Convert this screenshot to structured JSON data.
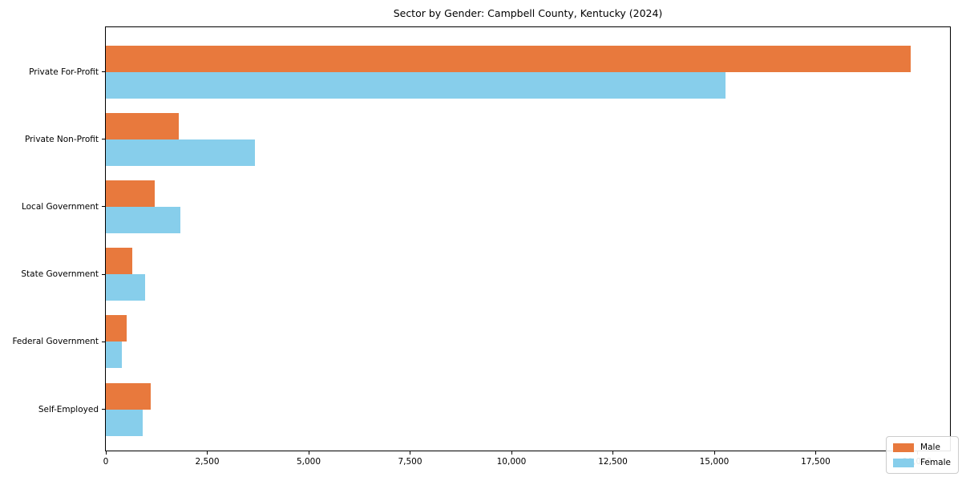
{
  "title": "Sector by Gender: Campbell County, Kentucky (2024)",
  "colors": {
    "male": "#e8793d",
    "female": "#87ceeb",
    "axis": "#000000",
    "legend_border": "#cccccc",
    "background": "#ffffff"
  },
  "chart_data": {
    "type": "bar",
    "orientation": "horizontal",
    "title": "Sector by Gender: Campbell County, Kentucky (2024)",
    "categories": [
      "Private For-Profit",
      "Private Non-Profit",
      "Local Government",
      "State Government",
      "Federal Government",
      "Self-Employed"
    ],
    "series": [
      {
        "name": "Male",
        "color": "#e8793d",
        "values": [
          19840,
          1800,
          1210,
          650,
          510,
          1110
        ]
      },
      {
        "name": "Female",
        "color": "#87ceeb",
        "values": [
          15280,
          3680,
          1840,
          970,
          400,
          910
        ]
      }
    ],
    "xlabel": "",
    "ylabel": "",
    "xlim": [
      0,
      20850
    ],
    "x_ticks": [
      0,
      2500,
      5000,
      7500,
      10000,
      12500,
      15000,
      17500,
      20000
    ],
    "x_tick_labels": [
      "0",
      "2,500",
      "5,000",
      "7,500",
      "10,000",
      "12,500",
      "15,000",
      "17,500",
      "20,000"
    ],
    "grid": false,
    "legend": {
      "position": "lower right",
      "entries": [
        {
          "label": "Male",
          "color": "#e8793d"
        },
        {
          "label": "Female",
          "color": "#87ceeb"
        }
      ]
    }
  }
}
